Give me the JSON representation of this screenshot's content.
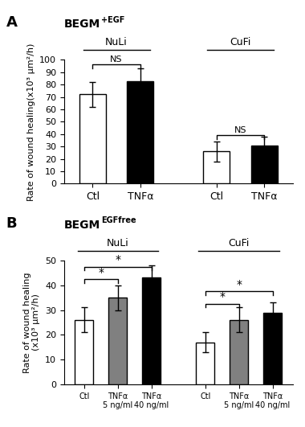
{
  "chart_data": [
    {
      "type": "bar",
      "panel_label": "A",
      "title": "BEGM",
      "title_superscript": "+EGF",
      "groups": [
        {
          "name": "NuLi",
          "categories": [
            "Ctl",
            "TNFα"
          ],
          "values": [
            72,
            83
          ],
          "errors": [
            10,
            10
          ],
          "colors": [
            "white",
            "black"
          ]
        },
        {
          "name": "CuFi",
          "categories": [
            "Ctl",
            "TNFα"
          ],
          "values": [
            26,
            31
          ],
          "errors": [
            8,
            7
          ],
          "colors": [
            "white",
            "black"
          ]
        }
      ],
      "ylabel": "Rate of wound healing(x10³ μm²/h)",
      "ylim": [
        0,
        100
      ],
      "yticks": [
        0,
        10,
        20,
        30,
        40,
        50,
        60,
        70,
        80,
        90,
        100
      ],
      "annotations": [
        {
          "text": "NS",
          "group": "NuLi",
          "from": "Ctl",
          "to": "TNFα",
          "y": 93
        },
        {
          "text": "NS",
          "group": "CuFi",
          "from": "Ctl",
          "to": "TNFα",
          "y": 36
        }
      ]
    },
    {
      "type": "bar",
      "panel_label": "B",
      "title": "BEGM",
      "title_superscript": "EGFfree",
      "groups": [
        {
          "name": "NuLi",
          "categories": [
            "Ctl",
            "TNFα\n5 ng/ml",
            "TNFα\n40 ng/ml"
          ],
          "values": [
            26,
            35,
            43
          ],
          "errors": [
            5,
            5,
            5
          ],
          "colors": [
            "white",
            "#808080",
            "black"
          ]
        },
        {
          "name": "CuFi",
          "categories": [
            "Ctl",
            "TNFα\n5 ng/ml",
            "TNFα\n40 ng/ml"
          ],
          "values": [
            17,
            26,
            29
          ],
          "errors": [
            4,
            5,
            4
          ],
          "colors": [
            "white",
            "#808080",
            "black"
          ]
        }
      ],
      "ylabel": "Rate of wound healing\n(x10³ μm²/h)",
      "ylim": [
        0,
        50
      ],
      "yticks": [
        0,
        10,
        20,
        30,
        40,
        50
      ],
      "annotations": [
        {
          "text": "*",
          "group": "NuLi",
          "from": "Ctl",
          "to": "TNFα\n5 ng/ml",
          "y": 41
        },
        {
          "text": "*",
          "group": "NuLi",
          "from": "Ctl",
          "to": "TNFα\n40 ng/ml",
          "y": 46
        },
        {
          "text": "*",
          "group": "CuFi",
          "from": "Ctl",
          "to": "TNFα\n5 ng/ml",
          "y": 31
        },
        {
          "text": "*",
          "group": "CuFi",
          "from": "Ctl",
          "to": "TNFα\n40 ng/ml",
          "y": 36
        }
      ]
    }
  ]
}
